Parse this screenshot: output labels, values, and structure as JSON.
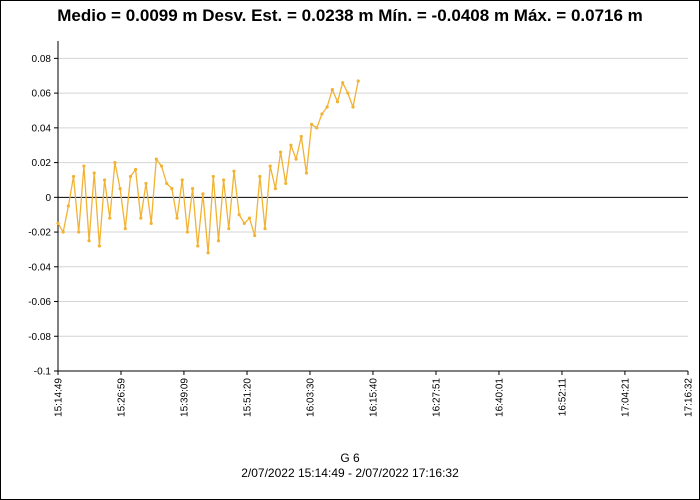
{
  "chart_data": {
    "type": "line",
    "title": "Medio = 0.0099 m  Desv. Est. = 0.0238 m  Mín. = -0.0408 m  Máx. = 0.0716 m",
    "subtitle": "G 6",
    "date_range": "2/07/2022 15:14:49 - 2/07/2022 17:16:32",
    "xlabel": "",
    "ylabel": "",
    "ylim": [
      -0.1,
      0.09
    ],
    "yticks": [
      -0.1,
      -0.08,
      -0.06,
      -0.04,
      -0.02,
      0,
      0.02,
      0.04,
      0.06,
      0.08
    ],
    "ytick_labels": [
      "-0.1",
      "-0.08",
      "-0.06",
      "-0.04",
      "-0.02",
      "0",
      "0.02",
      "0.04",
      "0.06",
      "0.08"
    ],
    "xlim_minutes": [
      0,
      121.72
    ],
    "xticks_minutes": [
      0,
      12.17,
      24.33,
      36.52,
      48.68,
      60.85,
      73.03,
      85.2,
      97.37,
      109.53,
      121.72
    ],
    "xtick_labels": [
      "15:14:49",
      "15:26:59",
      "15:39:09",
      "15:51:20",
      "16:03:30",
      "16:15:40",
      "16:27:51",
      "16:40:01",
      "16:52:11",
      "17:04:21",
      "17:16:32"
    ],
    "grid": true,
    "zero_line": true,
    "series_color": "#F2B233",
    "series": [
      {
        "name": "G 6",
        "x_minutes": [
          0.0,
          1.0,
          2.0,
          3.0,
          4.0,
          5.0,
          6.0,
          7.0,
          8.0,
          9.0,
          10.0,
          11.0,
          12.0,
          13.0,
          14.0,
          15.0,
          16.0,
          17.0,
          18.0,
          19.0,
          20.0,
          21.0,
          22.0,
          23.0,
          24.0,
          25.0,
          26.0,
          27.0,
          28.0,
          29.0,
          30.0,
          31.0,
          32.0,
          33.0,
          34.0,
          35.0,
          36.0,
          37.0,
          38.0,
          39.0,
          40.0,
          41.0,
          42.0,
          43.0,
          44.0,
          45.0,
          46.0,
          47.0,
          48.0,
          49.0,
          50.0,
          51.0,
          52.0,
          53.0,
          54.0,
          55.0,
          56.0,
          57.0,
          58.0
        ],
        "values": [
          -0.015,
          -0.02,
          -0.005,
          0.012,
          -0.02,
          0.018,
          -0.025,
          0.014,
          -0.028,
          0.01,
          -0.012,
          0.02,
          0.005,
          -0.018,
          0.012,
          0.016,
          -0.012,
          0.008,
          -0.015,
          0.022,
          0.018,
          0.008,
          0.005,
          -0.012,
          0.01,
          -0.02,
          0.005,
          -0.028,
          0.002,
          -0.032,
          0.012,
          -0.025,
          0.01,
          -0.018,
          0.015,
          -0.01,
          -0.015,
          -0.012,
          -0.022,
          0.012,
          -0.018,
          0.018,
          0.005,
          0.026,
          0.008,
          0.03,
          0.022,
          0.035,
          0.014,
          0.042,
          0.04,
          0.048,
          0.052,
          0.062,
          0.055,
          0.066,
          0.06,
          0.052,
          0.067
        ]
      }
    ]
  }
}
